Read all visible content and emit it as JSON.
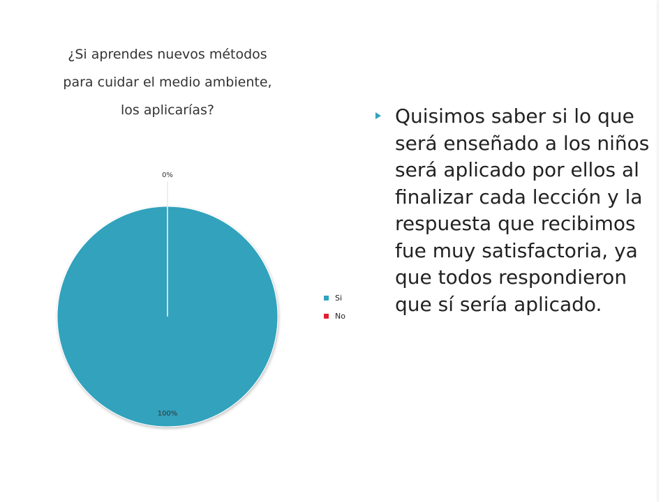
{
  "slide": {
    "bullet_text": "Quisimos saber si lo que será enseñado a los niños será aplicado por ellos al finalizar cada lección y la respuesta que recibimos fue muy satisfactoria, ya que todos respondieron que sí sería aplicado.",
    "bullet_color": "#31a2bd"
  },
  "chart_data": {
    "type": "pie",
    "title_lines": [
      "¿Si aprendes nuevos métodos",
      "para cuidar el medio ambiente,",
      "los aplicarías?"
    ],
    "categories": [
      "Si",
      "No"
    ],
    "values": [
      100,
      0
    ],
    "data_labels": [
      "100%",
      "0%"
    ],
    "colors": [
      "#31a2bd",
      "#e0202f"
    ],
    "legend_position": "right",
    "legend": [
      "Si",
      "No"
    ]
  }
}
